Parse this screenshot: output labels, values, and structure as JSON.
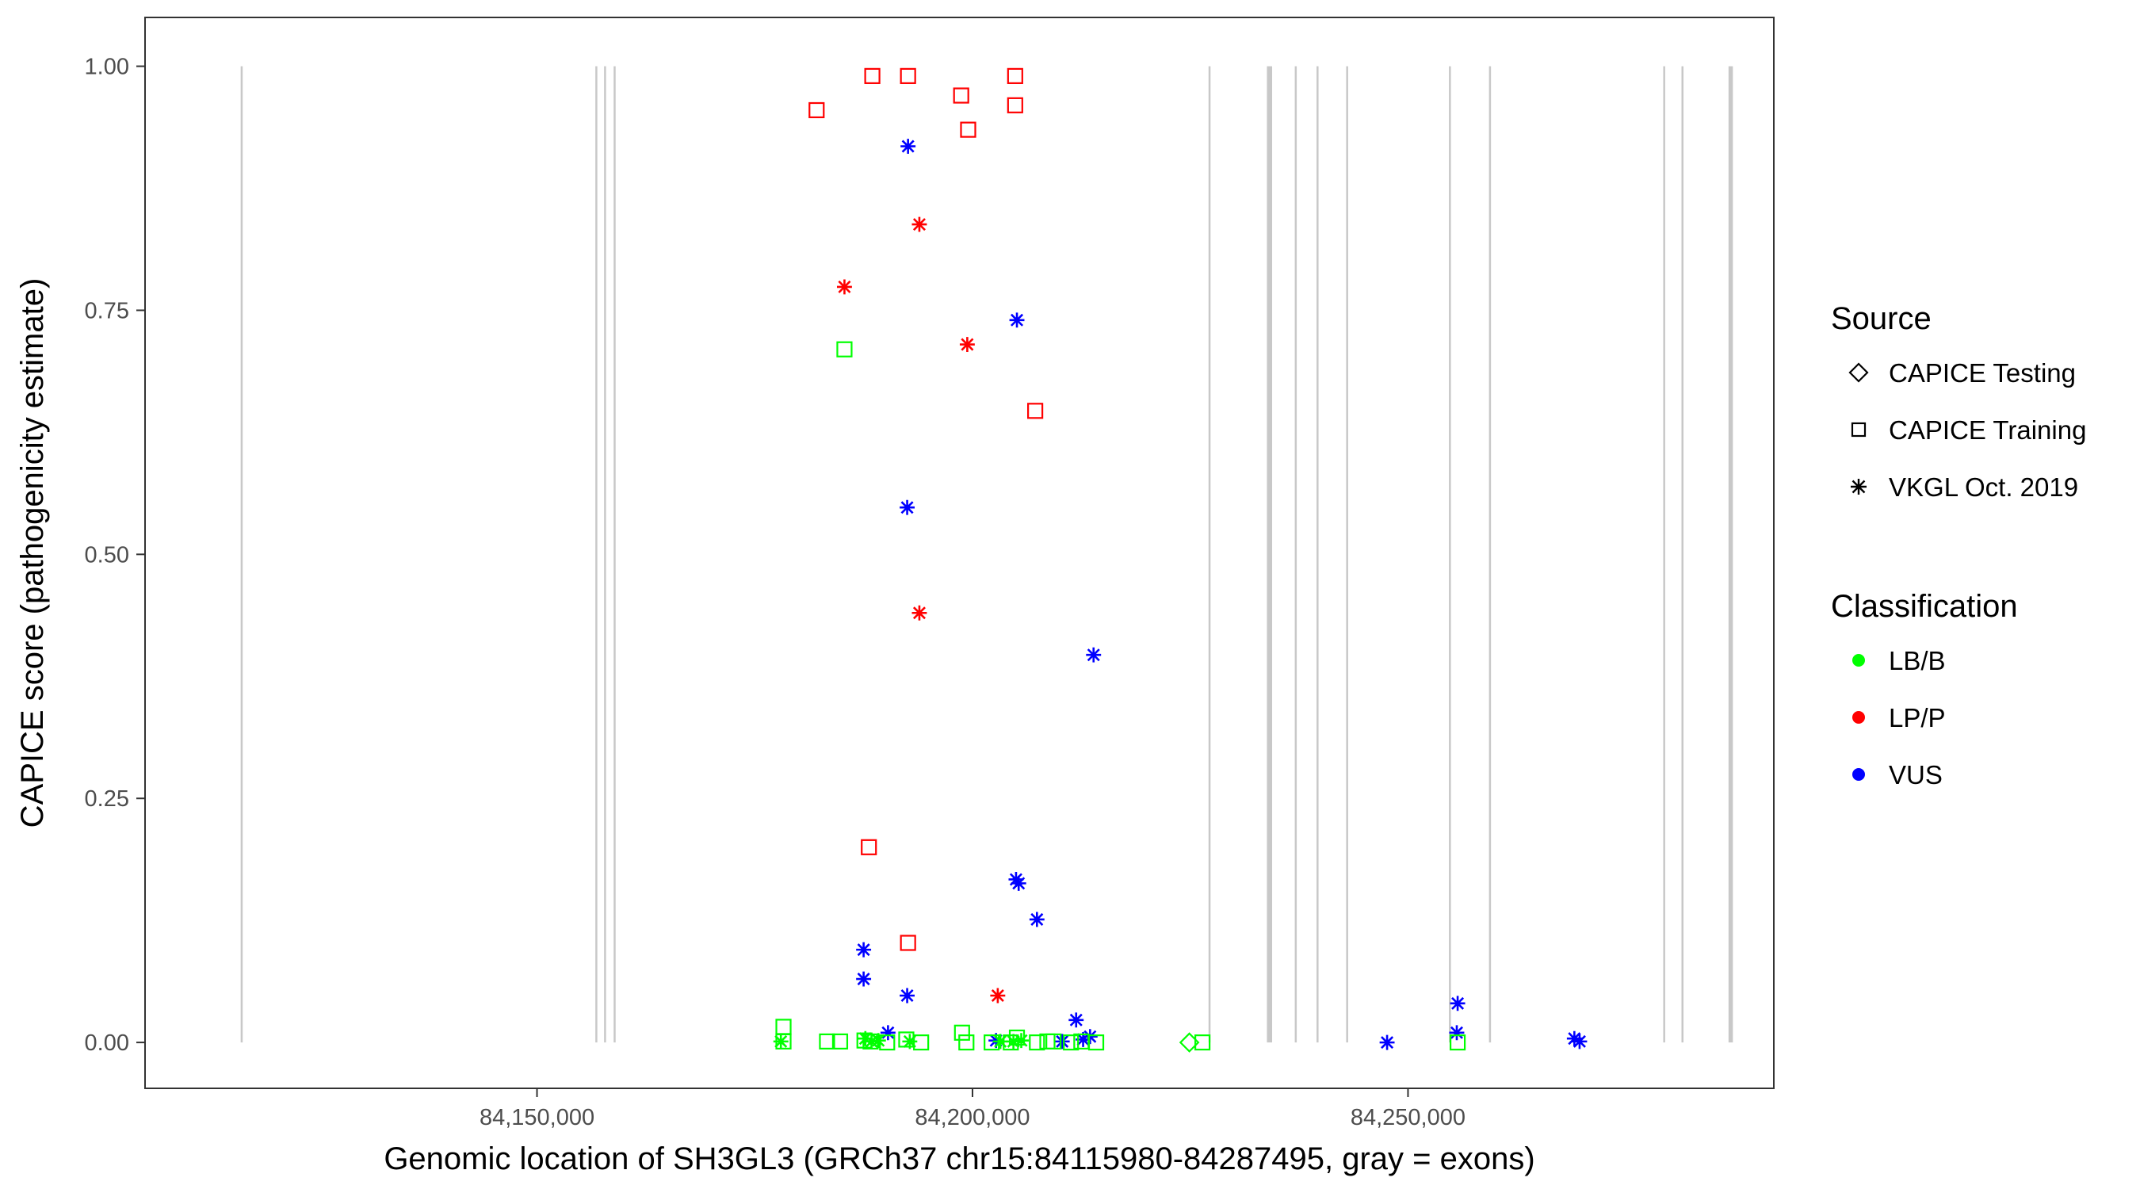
{
  "chart_data": {
    "type": "scatter",
    "title": "",
    "xlabel": "Genomic location of SH3GL3 (GRCh37 chr15:84115980-84287495, gray = exons)",
    "ylabel": "CAPICE score (pathogenicity estimate)",
    "xlim": [
      84105000,
      84292000
    ],
    "ylim": [
      -0.047,
      1.05
    ],
    "x_ticks": [
      84150000,
      84200000,
      84250000
    ],
    "x_tick_labels": [
      "84,150,000",
      "84,200,000",
      "84,250,000"
    ],
    "y_ticks": [
      0,
      0.25,
      0.5,
      0.75,
      1.0
    ],
    "y_tick_labels": [
      "0.00",
      "0.25",
      "0.50",
      "0.75",
      "1.00"
    ],
    "grid": false,
    "legend_position": "right",
    "exons": [
      {
        "start": 84115980,
        "end": 84116150
      },
      {
        "start": 84156700,
        "end": 84156800
      },
      {
        "start": 84157700,
        "end": 84157800
      },
      {
        "start": 84158800,
        "end": 84158900
      },
      {
        "start": 84227100,
        "end": 84227200
      },
      {
        "start": 84233800,
        "end": 84234400
      },
      {
        "start": 84237000,
        "end": 84237100
      },
      {
        "start": 84239500,
        "end": 84239600
      },
      {
        "start": 84242900,
        "end": 84243000
      },
      {
        "start": 84254700,
        "end": 84254800
      },
      {
        "start": 84259300,
        "end": 84259400
      },
      {
        "start": 84279300,
        "end": 84279400
      },
      {
        "start": 84281400,
        "end": 84281500
      },
      {
        "start": 84286800,
        "end": 84287300
      }
    ],
    "legend": {
      "source_title": "Source",
      "source_items": [
        {
          "label": "CAPICE Testing",
          "shape": "diamond"
        },
        {
          "label": "CAPICE Training",
          "shape": "square"
        },
        {
          "label": "VKGL Oct. 2019",
          "shape": "asterisk"
        }
      ],
      "class_title": "Classification",
      "class_items": [
        {
          "label": "LB/B",
          "color": "#00ff00"
        },
        {
          "label": "LP/P",
          "color": "#ff0000"
        },
        {
          "label": "VUS",
          "color": "#0000ff"
        }
      ]
    },
    "colors": {
      "LB/B": "#00ff00",
      "LP/P": "#ff0000",
      "VUS": "#0000ff"
    },
    "points": [
      {
        "x": 84188500,
        "y": 0.99,
        "source": "CAPICE Training",
        "class": "LP/P"
      },
      {
        "x": 84192600,
        "y": 0.99,
        "source": "CAPICE Training",
        "class": "LP/P"
      },
      {
        "x": 84204900,
        "y": 0.99,
        "source": "CAPICE Training",
        "class": "LP/P"
      },
      {
        "x": 84198700,
        "y": 0.97,
        "source": "CAPICE Training",
        "class": "LP/P"
      },
      {
        "x": 84182100,
        "y": 0.955,
        "source": "CAPICE Training",
        "class": "LP/P"
      },
      {
        "x": 84204900,
        "y": 0.96,
        "source": "CAPICE Training",
        "class": "LP/P"
      },
      {
        "x": 84199500,
        "y": 0.935,
        "source": "CAPICE Training",
        "class": "LP/P"
      },
      {
        "x": 84207200,
        "y": 0.647,
        "source": "CAPICE Training",
        "class": "LP/P"
      },
      {
        "x": 84188100,
        "y": 0.2,
        "source": "CAPICE Training",
        "class": "LP/P"
      },
      {
        "x": 84192600,
        "y": 0.102,
        "source": "CAPICE Training",
        "class": "LP/P"
      },
      {
        "x": 84193900,
        "y": 0.838,
        "source": "VKGL Oct. 2019",
        "class": "LP/P"
      },
      {
        "x": 84185300,
        "y": 0.774,
        "source": "VKGL Oct. 2019",
        "class": "LP/P"
      },
      {
        "x": 84199400,
        "y": 0.715,
        "source": "VKGL Oct. 2019",
        "class": "LP/P"
      },
      {
        "x": 84193900,
        "y": 0.44,
        "source": "VKGL Oct. 2019",
        "class": "LP/P"
      },
      {
        "x": 84202900,
        "y": 0.048,
        "source": "VKGL Oct. 2019",
        "class": "LP/P"
      },
      {
        "x": 84192600,
        "y": 0.918,
        "source": "VKGL Oct. 2019",
        "class": "VUS"
      },
      {
        "x": 84205100,
        "y": 0.74,
        "source": "VKGL Oct. 2019",
        "class": "VUS"
      },
      {
        "x": 84192500,
        "y": 0.548,
        "source": "VKGL Oct. 2019",
        "class": "VUS"
      },
      {
        "x": 84213900,
        "y": 0.397,
        "source": "VKGL Oct. 2019",
        "class": "VUS"
      },
      {
        "x": 84205000,
        "y": 0.167,
        "source": "VKGL Oct. 2019",
        "class": "VUS"
      },
      {
        "x": 84205300,
        "y": 0.163,
        "source": "VKGL Oct. 2019",
        "class": "VUS"
      },
      {
        "x": 84207400,
        "y": 0.126,
        "source": "VKGL Oct. 2019",
        "class": "VUS"
      },
      {
        "x": 84187500,
        "y": 0.095,
        "source": "VKGL Oct. 2019",
        "class": "VUS"
      },
      {
        "x": 84187500,
        "y": 0.065,
        "source": "VKGL Oct. 2019",
        "class": "VUS"
      },
      {
        "x": 84192500,
        "y": 0.048,
        "source": "VKGL Oct. 2019",
        "class": "VUS"
      },
      {
        "x": 84211900,
        "y": 0.023,
        "source": "VKGL Oct. 2019",
        "class": "VUS"
      },
      {
        "x": 84190300,
        "y": 0.01,
        "source": "VKGL Oct. 2019",
        "class": "VUS"
      },
      {
        "x": 84202700,
        "y": 0.002,
        "source": "VKGL Oct. 2019",
        "class": "VUS"
      },
      {
        "x": 84210300,
        "y": 0.001,
        "source": "VKGL Oct. 2019",
        "class": "VUS"
      },
      {
        "x": 84212700,
        "y": 0.003,
        "source": "VKGL Oct. 2019",
        "class": "VUS"
      },
      {
        "x": 84213500,
        "y": 0.006,
        "source": "VKGL Oct. 2019",
        "class": "VUS"
      },
      {
        "x": 84247600,
        "y": 0.0,
        "source": "VKGL Oct. 2019",
        "class": "VUS"
      },
      {
        "x": 84255700,
        "y": 0.04,
        "source": "VKGL Oct. 2019",
        "class": "VUS"
      },
      {
        "x": 84255600,
        "y": 0.01,
        "source": "VKGL Oct. 2019",
        "class": "VUS"
      },
      {
        "x": 84269100,
        "y": 0.004,
        "source": "VKGL Oct. 2019",
        "class": "VUS"
      },
      {
        "x": 84269700,
        "y": 0.001,
        "source": "VKGL Oct. 2019",
        "class": "VUS"
      },
      {
        "x": 84185300,
        "y": 0.71,
        "source": "CAPICE Training",
        "class": "LB/B"
      },
      {
        "x": 84178300,
        "y": 0.016,
        "source": "CAPICE Training",
        "class": "LB/B"
      },
      {
        "x": 84178300,
        "y": 0.001,
        "source": "CAPICE Training",
        "class": "LB/B"
      },
      {
        "x": 84183300,
        "y": 0.001,
        "source": "CAPICE Training",
        "class": "LB/B"
      },
      {
        "x": 84184800,
        "y": 0.001,
        "source": "CAPICE Training",
        "class": "LB/B"
      },
      {
        "x": 84187600,
        "y": 0.002,
        "source": "CAPICE Training",
        "class": "LB/B"
      },
      {
        "x": 84188300,
        "y": 0.001,
        "source": "CAPICE Training",
        "class": "LB/B"
      },
      {
        "x": 84190200,
        "y": 0.0,
        "source": "CAPICE Training",
        "class": "LB/B"
      },
      {
        "x": 84192400,
        "y": 0.003,
        "source": "CAPICE Training",
        "class": "LB/B"
      },
      {
        "x": 84194100,
        "y": 0.0,
        "source": "CAPICE Training",
        "class": "LB/B"
      },
      {
        "x": 84198800,
        "y": 0.01,
        "source": "CAPICE Training",
        "class": "LB/B"
      },
      {
        "x": 84199300,
        "y": 0.0,
        "source": "CAPICE Training",
        "class": "LB/B"
      },
      {
        "x": 84202200,
        "y": 0.0,
        "source": "CAPICE Training",
        "class": "LB/B"
      },
      {
        "x": 84204400,
        "y": 0.0,
        "source": "CAPICE Training",
        "class": "LB/B"
      },
      {
        "x": 84205100,
        "y": 0.005,
        "source": "CAPICE Training",
        "class": "LB/B"
      },
      {
        "x": 84207400,
        "y": 0.0,
        "source": "CAPICE Training",
        "class": "LB/B"
      },
      {
        "x": 84208600,
        "y": 0.001,
        "source": "CAPICE Training",
        "class": "LB/B"
      },
      {
        "x": 84209300,
        "y": 0.001,
        "source": "CAPICE Training",
        "class": "LB/B"
      },
      {
        "x": 84211300,
        "y": 0.0,
        "source": "CAPICE Training",
        "class": "LB/B"
      },
      {
        "x": 84212500,
        "y": 0.001,
        "source": "CAPICE Training",
        "class": "LB/B"
      },
      {
        "x": 84214200,
        "y": 0.0,
        "source": "CAPICE Training",
        "class": "LB/B"
      },
      {
        "x": 84226400,
        "y": 0.0,
        "source": "CAPICE Training",
        "class": "LB/B"
      },
      {
        "x": 84255700,
        "y": 0.0,
        "source": "CAPICE Training",
        "class": "LB/B"
      },
      {
        "x": 84224900,
        "y": 0.0,
        "source": "CAPICE Testing",
        "class": "LB/B"
      },
      {
        "x": 84178000,
        "y": 0.001,
        "source": "VKGL Oct. 2019",
        "class": "LB/B"
      },
      {
        "x": 84187700,
        "y": 0.004,
        "source": "VKGL Oct. 2019",
        "class": "LB/B"
      },
      {
        "x": 84188400,
        "y": 0.001,
        "source": "VKGL Oct. 2019",
        "class": "LB/B"
      },
      {
        "x": 84189200,
        "y": 0.002,
        "source": "VKGL Oct. 2019",
        "class": "LB/B"
      },
      {
        "x": 84192800,
        "y": 0.001,
        "source": "VKGL Oct. 2019",
        "class": "LB/B"
      },
      {
        "x": 84203200,
        "y": 0.001,
        "source": "VKGL Oct. 2019",
        "class": "LB/B"
      },
      {
        "x": 84204700,
        "y": 0.001,
        "source": "VKGL Oct. 2019",
        "class": "LB/B"
      },
      {
        "x": 84205600,
        "y": 0.002,
        "source": "VKGL Oct. 2019",
        "class": "LB/B"
      }
    ]
  }
}
